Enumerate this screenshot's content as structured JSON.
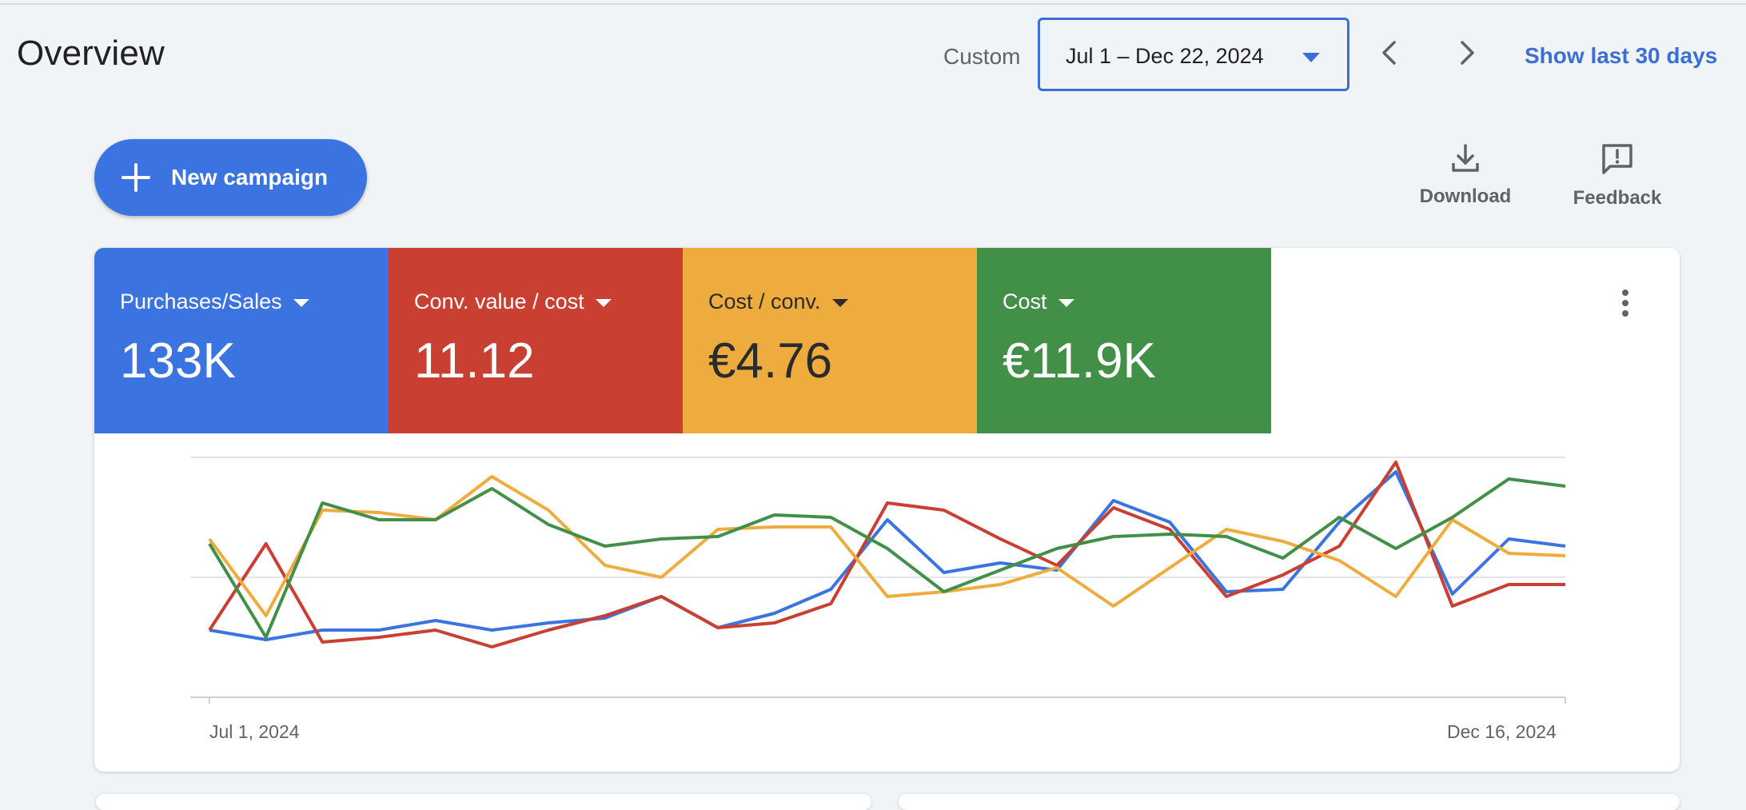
{
  "header": {
    "title": "Overview",
    "date_mode": "Custom",
    "date_range": "Jul 1 – Dec 22, 2024",
    "show_last_label": "Show last 30 days",
    "prev_icon": "chevron-left-icon",
    "next_icon": "chevron-right-icon"
  },
  "toolbar": {
    "new_campaign_label": "New campaign",
    "download_label": "Download",
    "feedback_label": "Feedback"
  },
  "metrics": [
    {
      "label": "Purchases/Sales",
      "value": "133K",
      "color": "#3b74e0"
    },
    {
      "label": "Conv. value / cost",
      "value": "11.12",
      "color": "#c93f31"
    },
    {
      "label": "Cost / conv.",
      "value": "€4.76",
      "color": "#efac3e"
    },
    {
      "label": "Cost",
      "value": "€11.9K",
      "color": "#428f47"
    }
  ],
  "chart_data": {
    "type": "line",
    "x_start_label": "Jul 1, 2024",
    "x_end_label": "Dec 16, 2024",
    "x": [
      "Jul 1, 2024",
      "Jul 8, 2024",
      "Jul 15, 2024",
      "Jul 22, 2024",
      "Jul 29, 2024",
      "Aug 5, 2024",
      "Aug 12, 2024",
      "Aug 19, 2024",
      "Aug 26, 2024",
      "Sep 2, 2024",
      "Sep 9, 2024",
      "Sep 16, 2024",
      "Sep 23, 2024",
      "Sep 30, 2024",
      "Oct 7, 2024",
      "Oct 14, 2024",
      "Oct 21, 2024",
      "Oct 28, 2024",
      "Nov 4, 2024",
      "Nov 11, 2024",
      "Nov 18, 2024",
      "Nov 25, 2024",
      "Dec 2, 2024",
      "Dec 9, 2024",
      "Dec 16, 2024"
    ],
    "ylim": [
      0,
      100
    ],
    "grid": true,
    "series": [
      {
        "color": "#3b74e0",
        "values": [
          28,
          24,
          28,
          28,
          32,
          28,
          31,
          33,
          42,
          29,
          35,
          45,
          74,
          52,
          56,
          53,
          82,
          73,
          44,
          45,
          73,
          94,
          43,
          66,
          63
        ]
      },
      {
        "color": "#c93f31",
        "values": [
          28,
          64,
          23,
          25,
          28,
          21,
          28,
          34,
          42,
          29,
          31,
          39,
          81,
          78,
          66,
          55,
          79,
          70,
          42,
          51,
          63,
          98,
          38,
          47,
          47
        ]
      },
      {
        "color": "#efac3e",
        "values": [
          66,
          34,
          78,
          77,
          74,
          92,
          78,
          55,
          50,
          70,
          71,
          71,
          42,
          44,
          47,
          54,
          38,
          54,
          70,
          65,
          57,
          42,
          74,
          60,
          59
        ]
      },
      {
        "color": "#428f47",
        "values": [
          64,
          25,
          81,
          74,
          74,
          87,
          72,
          63,
          66,
          67,
          76,
          75,
          62,
          44,
          53,
          62,
          67,
          68,
          67,
          58,
          75,
          62,
          75,
          91,
          88
        ]
      }
    ]
  }
}
